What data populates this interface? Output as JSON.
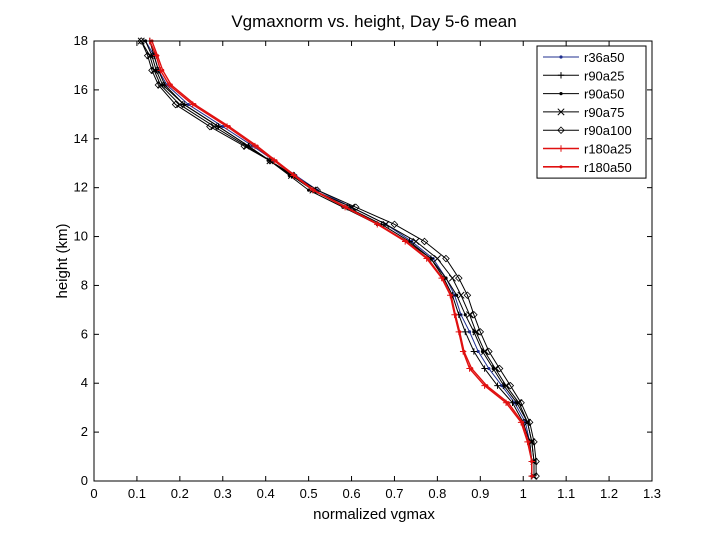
{
  "chart_data": {
    "type": "line",
    "title": "Vgmaxnorm vs. height, Day 5-6 mean",
    "xlabel": "normalized vgmax",
    "ylabel": "height (km)",
    "xlim": [
      0,
      1.3
    ],
    "ylim": [
      0,
      18
    ],
    "xticks": [
      0,
      0.1,
      0.2,
      0.3,
      0.4,
      0.5,
      0.6,
      0.7,
      0.8,
      0.9,
      1,
      1.1,
      1.2,
      1.3
    ],
    "xtick_labels": [
      "0",
      "0.1",
      "0.2",
      "0.3",
      "0.4",
      "0.5",
      "0.6",
      "0.7",
      "0.8",
      "0.9",
      "1",
      "1.1",
      "1.2",
      "1.3"
    ],
    "yticks": [
      0,
      2,
      4,
      6,
      8,
      10,
      12,
      14,
      16,
      18
    ],
    "ytick_labels": [
      "0",
      "2",
      "4",
      "6",
      "8",
      "10",
      "12",
      "14",
      "16",
      "18"
    ],
    "grid": false,
    "legend_position": "top-right",
    "series": [
      {
        "name": "r36a50",
        "color": "#1f2f8f",
        "marker": "dot",
        "x": [
          1.02,
          1.02,
          1.015,
          1.005,
          0.98,
          0.95,
          0.92,
          0.895,
          0.875,
          0.855,
          0.84,
          0.82,
          0.79,
          0.74,
          0.68,
          0.6,
          0.52,
          0.47,
          0.42,
          0.37,
          0.3,
          0.22,
          0.17,
          0.15,
          0.14,
          0.12
        ],
        "y": [
          0.2,
          0.8,
          1.6,
          2.4,
          3.2,
          3.9,
          4.6,
          5.3,
          6.1,
          6.8,
          7.6,
          8.3,
          9.1,
          9.8,
          10.5,
          11.2,
          11.9,
          12.5,
          13.1,
          13.7,
          14.5,
          15.4,
          16.2,
          16.8,
          17.4,
          18
        ]
      },
      {
        "name": "r90a25",
        "color": "#000000",
        "marker": "plus",
        "x": [
          1.02,
          1.02,
          1.015,
          1.0,
          0.975,
          0.94,
          0.91,
          0.885,
          0.865,
          0.85,
          0.835,
          0.815,
          0.785,
          0.735,
          0.67,
          0.59,
          0.51,
          0.46,
          0.41,
          0.36,
          0.29,
          0.21,
          0.165,
          0.15,
          0.14,
          0.13
        ],
        "y": [
          0.2,
          0.8,
          1.6,
          2.4,
          3.2,
          3.9,
          4.6,
          5.3,
          6.1,
          6.8,
          7.6,
          8.3,
          9.1,
          9.8,
          10.5,
          11.2,
          11.9,
          12.5,
          13.1,
          13.7,
          14.5,
          15.4,
          16.2,
          16.8,
          17.4,
          18
        ]
      },
      {
        "name": "r90a50",
        "color": "#000000",
        "marker": "dot",
        "x": [
          1.025,
          1.025,
          1.02,
          1.01,
          0.985,
          0.955,
          0.93,
          0.905,
          0.885,
          0.865,
          0.845,
          0.82,
          0.785,
          0.73,
          0.66,
          0.58,
          0.5,
          0.455,
          0.41,
          0.36,
          0.29,
          0.21,
          0.16,
          0.145,
          0.135,
          0.12
        ],
        "y": [
          0.2,
          0.8,
          1.6,
          2.4,
          3.2,
          3.9,
          4.6,
          5.3,
          6.1,
          6.8,
          7.6,
          8.3,
          9.1,
          9.8,
          10.5,
          11.2,
          11.9,
          12.5,
          13.1,
          13.7,
          14.5,
          15.4,
          16.2,
          16.8,
          17.4,
          18
        ]
      },
      {
        "name": "r90a75",
        "color": "#000000",
        "marker": "x",
        "x": [
          1.025,
          1.025,
          1.02,
          1.01,
          0.99,
          0.96,
          0.935,
          0.91,
          0.89,
          0.875,
          0.855,
          0.835,
          0.8,
          0.75,
          0.68,
          0.6,
          0.51,
          0.46,
          0.41,
          0.355,
          0.28,
          0.2,
          0.155,
          0.14,
          0.13,
          0.11
        ],
        "y": [
          0.2,
          0.8,
          1.6,
          2.4,
          3.2,
          3.9,
          4.6,
          5.3,
          6.1,
          6.8,
          7.6,
          8.3,
          9.1,
          9.8,
          10.5,
          11.2,
          11.9,
          12.5,
          13.1,
          13.7,
          14.5,
          15.4,
          16.2,
          16.8,
          17.4,
          18
        ]
      },
      {
        "name": "r90a100",
        "color": "#000000",
        "marker": "diamond",
        "x": [
          1.03,
          1.03,
          1.025,
          1.015,
          0.995,
          0.97,
          0.945,
          0.92,
          0.9,
          0.885,
          0.87,
          0.85,
          0.82,
          0.77,
          0.7,
          0.61,
          0.52,
          0.465,
          0.41,
          0.35,
          0.27,
          0.19,
          0.15,
          0.135,
          0.125,
          0.11
        ],
        "y": [
          0.2,
          0.8,
          1.6,
          2.4,
          3.2,
          3.9,
          4.6,
          5.3,
          6.1,
          6.8,
          7.6,
          8.3,
          9.1,
          9.8,
          10.5,
          11.2,
          11.9,
          12.5,
          13.1,
          13.7,
          14.5,
          15.4,
          16.2,
          16.8,
          17.4,
          18
        ]
      },
      {
        "name": "r180a25",
        "color": "#e01010",
        "marker": "plus",
        "x": [
          1.02,
          1.02,
          1.01,
          0.995,
          0.96,
          0.91,
          0.875,
          0.86,
          0.85,
          0.84,
          0.83,
          0.81,
          0.775,
          0.725,
          0.66,
          0.585,
          0.51,
          0.465,
          0.42,
          0.375,
          0.31,
          0.23,
          0.175,
          0.155,
          0.145,
          0.13
        ],
        "y": [
          0.2,
          0.8,
          1.6,
          2.4,
          3.2,
          3.9,
          4.6,
          5.3,
          6.1,
          6.8,
          7.6,
          8.3,
          9.1,
          9.8,
          10.5,
          11.2,
          11.9,
          12.5,
          13.1,
          13.7,
          14.5,
          15.4,
          16.2,
          16.8,
          17.4,
          18
        ]
      },
      {
        "name": "r180a50",
        "color": "#e01010",
        "marker": "dot",
        "x": [
          1.02,
          1.02,
          1.012,
          0.998,
          0.965,
          0.915,
          0.88,
          0.862,
          0.852,
          0.842,
          0.832,
          0.812,
          0.778,
          0.728,
          0.663,
          0.588,
          0.512,
          0.468,
          0.424,
          0.38,
          0.315,
          0.235,
          0.18,
          0.16,
          0.148,
          0.135
        ],
        "y": [
          0.2,
          0.8,
          1.6,
          2.4,
          3.2,
          3.9,
          4.6,
          5.3,
          6.1,
          6.8,
          7.6,
          8.3,
          9.1,
          9.8,
          10.5,
          11.2,
          11.9,
          12.5,
          13.1,
          13.7,
          14.5,
          15.4,
          16.2,
          16.8,
          17.4,
          18
        ]
      }
    ]
  }
}
